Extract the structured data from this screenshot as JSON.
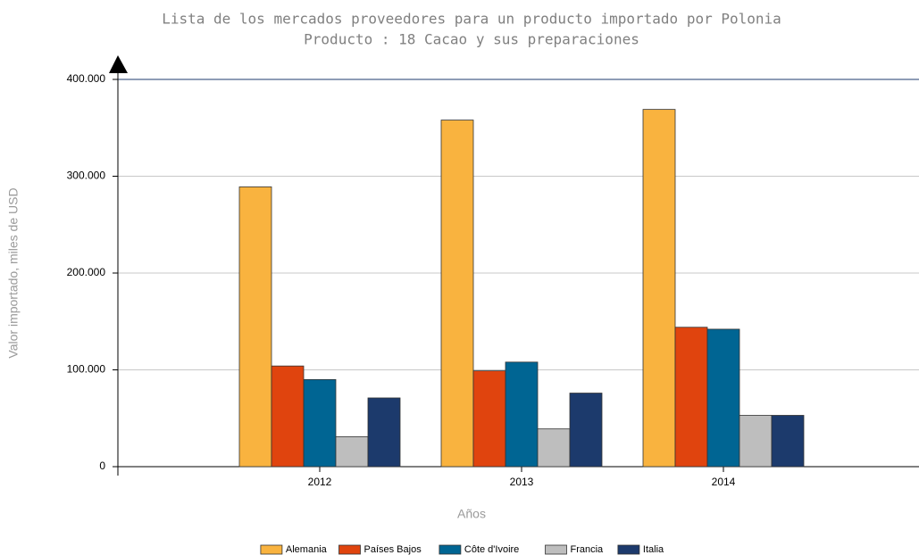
{
  "chart_data": {
    "type": "bar",
    "title": "Lista de los mercados proveedores para un producto importado por Polonia",
    "subtitle": "Producto : 18 Cacao y sus preparaciones",
    "x_label": "Años",
    "y_label": "Valor importado, miles de USD",
    "categories": [
      "2012",
      "2013",
      "2014"
    ],
    "series": [
      {
        "name": "Alemania",
        "color": "#f9b33f",
        "values": [
          289000,
          358000,
          369000
        ]
      },
      {
        "name": "Países Bajos",
        "color": "#e0440e",
        "values": [
          104000,
          99000,
          144000
        ]
      },
      {
        "name": "Côte d'Ivoire",
        "color": "#006593",
        "values": [
          90000,
          108000,
          142000
        ]
      },
      {
        "name": "Francia",
        "color": "#bebebe",
        "values": [
          31000,
          39000,
          53000
        ]
      },
      {
        "name": "Italia",
        "color": "#1c3a6c",
        "values": [
          71000,
          76000,
          53000
        ]
      }
    ],
    "ylim": [
      0,
      400000
    ],
    "yticks": [
      0,
      {
        "value": 100000,
        "label": "100.000"
      },
      {
        "value": 200000,
        "label": "200.000"
      },
      {
        "value": 300000,
        "label": "300.000"
      },
      {
        "value": 400000,
        "label": "400.000"
      }
    ],
    "grid": true,
    "legend": "bottom"
  }
}
